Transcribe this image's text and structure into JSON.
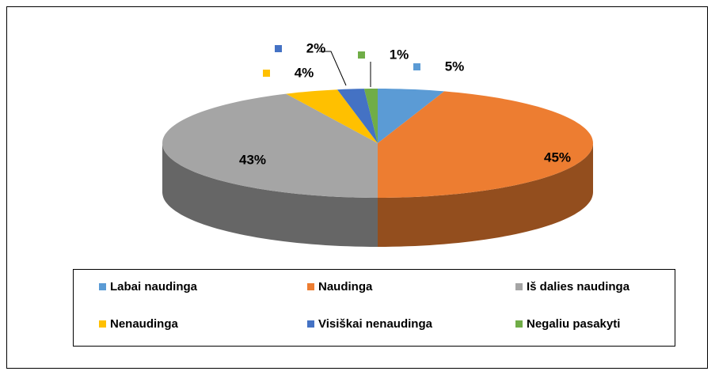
{
  "chart_data": {
    "type": "pie3d",
    "categories": [
      "Labai naudinga",
      "Naudinga",
      "Iš dalies naudinga",
      "Nenaudinga",
      "Visiškai nenaudinga",
      "Negaliu pasakyti"
    ],
    "values": [
      5,
      45,
      43,
      4,
      2,
      1
    ],
    "value_labels": [
      "5%",
      "45%",
      "43%",
      "4%",
      "2%",
      "1%"
    ],
    "colors": [
      "#5b9bd5",
      "#ed7d31",
      "#a5a5a5",
      "#ffc000",
      "#4472c4",
      "#70ad47"
    ],
    "legend": "bottom"
  }
}
